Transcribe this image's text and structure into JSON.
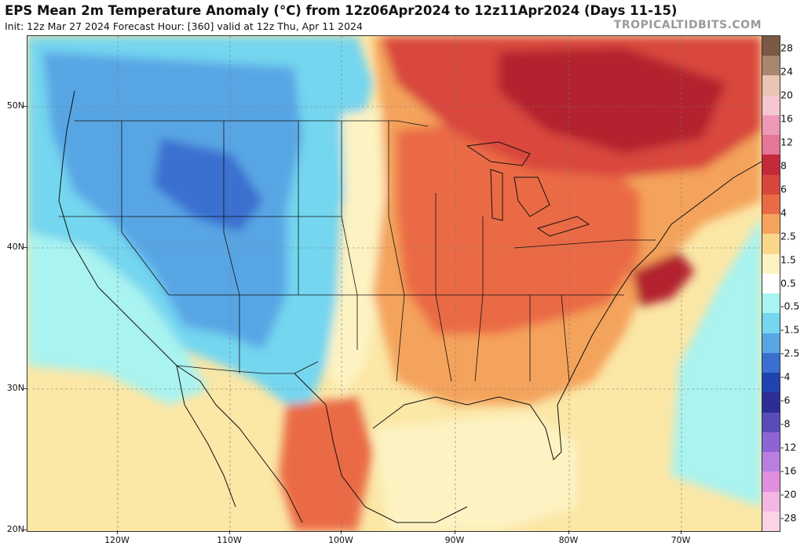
{
  "header": {
    "title": "EPS Mean 2m Temperature Anomaly (°C) from 12z06Apr2024 to 12z11Apr2024 (Days 11-15)",
    "subtitle": "Init: 12z Mar 27 2024   Forecast Hour: [360]   valid at 12z Thu, Apr 11 2024",
    "brand": "TROPICALTIDBITS.COM"
  },
  "axes": {
    "lat_labels": [
      "50N",
      "40N",
      "30N",
      "20N"
    ],
    "lon_labels": [
      "120W",
      "110W",
      "100W",
      "90W",
      "80W",
      "70W"
    ]
  },
  "colorbar": {
    "labels": [
      "28",
      "24",
      "20",
      "16",
      "12",
      "8",
      "6",
      "4",
      "2.5",
      "1.5",
      "0.5",
      "-0.5",
      "-1.5",
      "-2.5",
      "-4",
      "-6",
      "-8",
      "-12",
      "-16",
      "-20",
      "-28"
    ],
    "colors": [
      "#7a5a44",
      "#a8876f",
      "#e9c4b3",
      "#f4c7d0",
      "#ee99b8",
      "#e67598",
      "#c42a3a",
      "#d9463c",
      "#ea6a45",
      "#f4a35c",
      "#f9d78a",
      "#fdf3c2",
      "#ffffff",
      "#a9f3f0",
      "#74d6ef",
      "#58a5e4",
      "#3a6fd0",
      "#1f44b0",
      "#2c2e96",
      "#5a4cb8",
      "#8e64d3",
      "#b97fe0",
      "#e08fdf",
      "#f2b6e0",
      "#fbd2e6"
    ]
  },
  "map_legend_colors": {
    "strong_warm": "#b3242e",
    "warm": "#d9463c",
    "moderate_warm": "#ea6a45",
    "mild_warm": "#f4a35c",
    "slight_warm": "#f9d78a",
    "near_normal": "#fdf3c2",
    "slight_cool": "#a9f3f0",
    "cool": "#74d6ef",
    "moderate_cool": "#58a5e4",
    "strong_cool": "#3a6fd0"
  }
}
